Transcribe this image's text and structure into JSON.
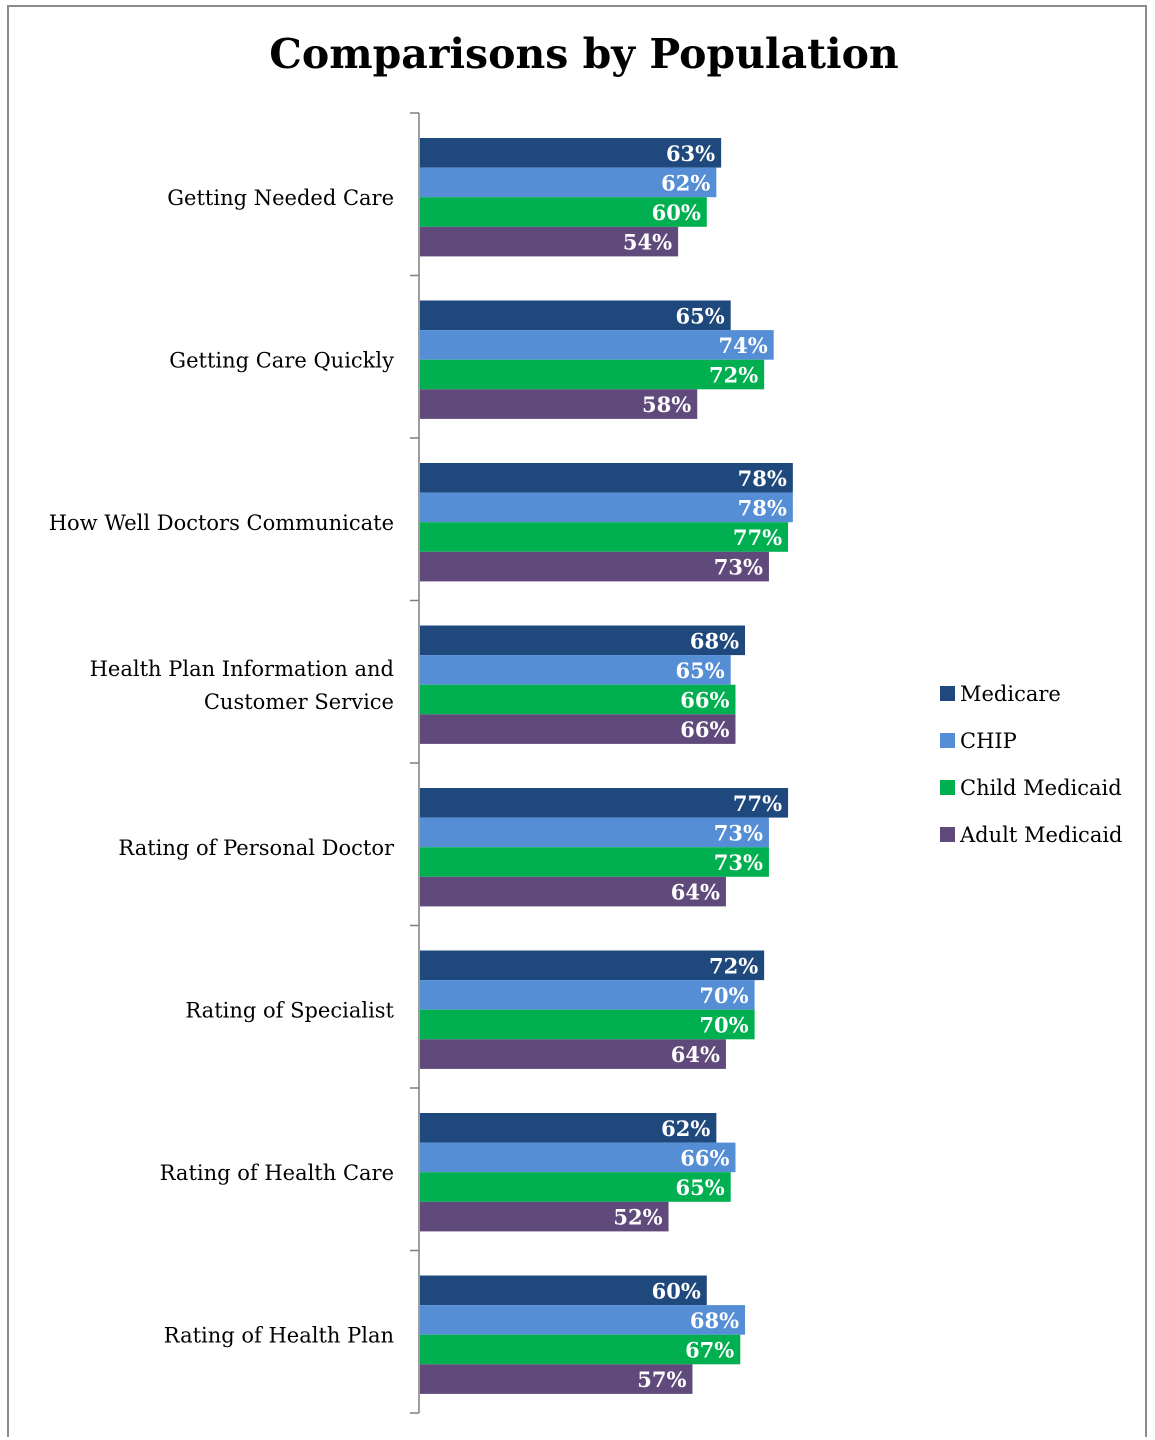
{
  "chart_data": {
    "type": "bar",
    "orientation": "horizontal",
    "title": "Comparisons by Population",
    "categories": [
      [
        "Getting Needed Care"
      ],
      [
        "Getting Care Quickly"
      ],
      [
        "How Well Doctors Communicate"
      ],
      [
        "Health Plan Information and",
        "Customer Service"
      ],
      [
        "Rating of Personal Doctor"
      ],
      [
        "Rating of Specialist"
      ],
      [
        "Rating of Health Care"
      ],
      [
        "Rating of Health Plan"
      ]
    ],
    "series": [
      {
        "name": "Medicare",
        "color": "#1f497d",
        "values": [
          63,
          65,
          78,
          68,
          77,
          72,
          62,
          60
        ]
      },
      {
        "name": "CHIP",
        "color": "#558ed5",
        "values": [
          62,
          74,
          78,
          65,
          73,
          70,
          66,
          68
        ]
      },
      {
        "name": "Child Medicaid",
        "color": "#00b050",
        "values": [
          60,
          72,
          77,
          66,
          73,
          70,
          65,
          67
        ]
      },
      {
        "name": "Adult Medicaid",
        "color": "#604a7b",
        "values": [
          54,
          58,
          73,
          66,
          64,
          64,
          52,
          57
        ]
      }
    ],
    "value_format": "percent",
    "xlim": [
      0,
      100
    ],
    "legend_position": "right",
    "grid": false
  }
}
